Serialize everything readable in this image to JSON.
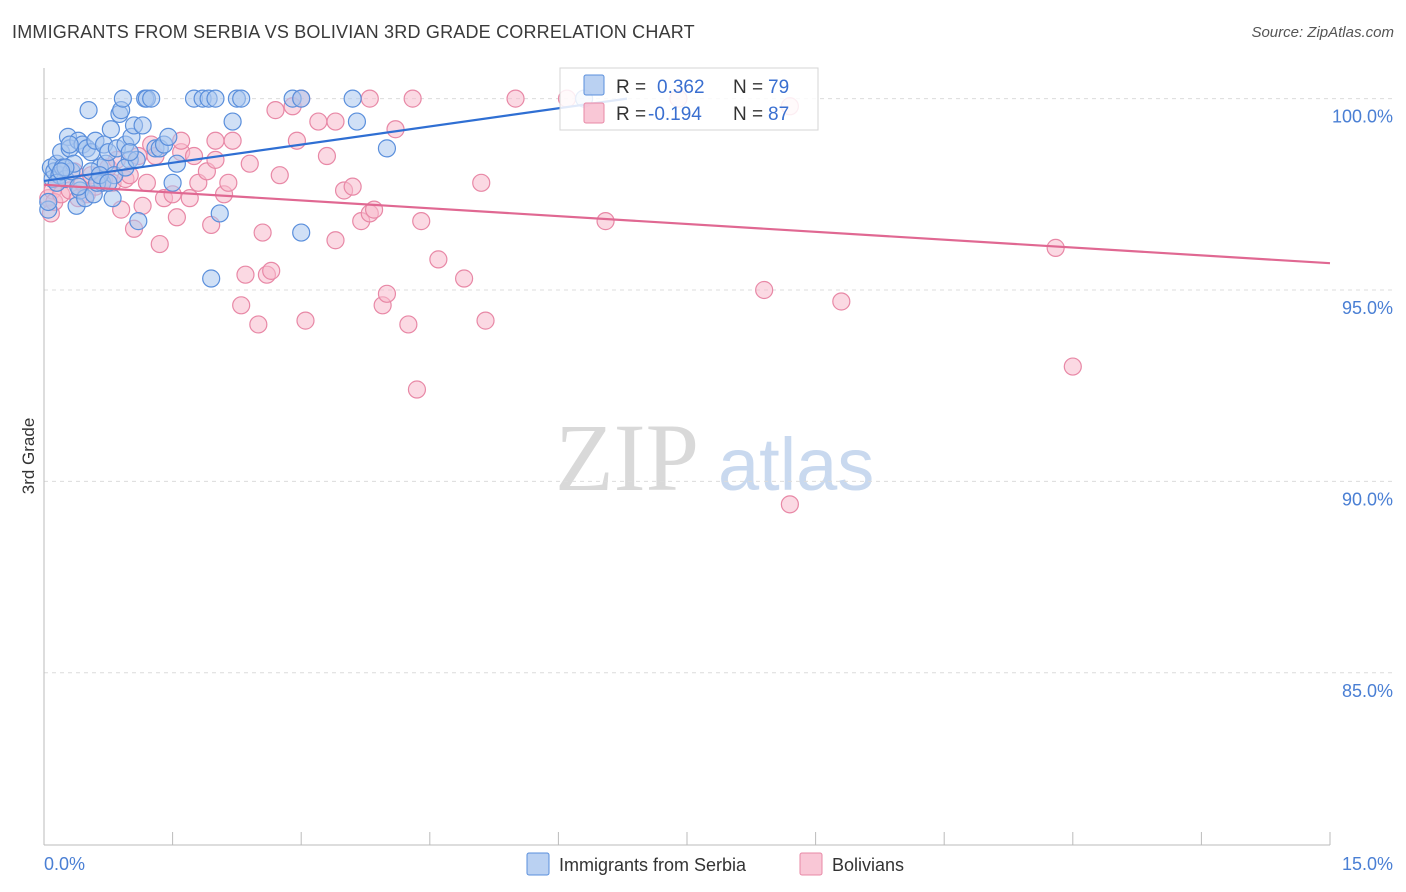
{
  "title": "IMMIGRANTS FROM SERBIA VS BOLIVIAN 3RD GRADE CORRELATION CHART",
  "source": "Source: ZipAtlas.com",
  "watermark": {
    "zip": "ZIP",
    "atlas": "atlas"
  },
  "colors": {
    "serbia_fill": "#a9c6ef",
    "serbia_stroke": "#5a8fdc",
    "serbia_line": "#2f6fd3",
    "bolivia_fill": "#f7b9cc",
    "bolivia_stroke": "#e888a6",
    "bolivia_line": "#e06892",
    "grid": "#dcdcdc",
    "tick_label": "#4a7fd4"
  },
  "legend_box": {
    "rows": [
      {
        "r_label": "R = ",
        "r_value": "0.362",
        "n_label": "N = ",
        "n_value": "79"
      },
      {
        "r_label": "R = ",
        "r_value": "-0.194",
        "n_label": "N = ",
        "n_value": "87"
      }
    ]
  },
  "chart_data": {
    "type": "scatter",
    "title": "IMMIGRANTS FROM SERBIA VS BOLIVIAN 3RD GRADE CORRELATION CHART",
    "xlabel": "",
    "ylabel": "3rd Grade",
    "xlim": [
      0,
      15
    ],
    "ylim": [
      80.5,
      100.8
    ],
    "x_tick_labels": {
      "left": "0.0%",
      "right": "15.0%"
    },
    "y_ticks": [
      {
        "value": 100,
        "label": "100.0%"
      },
      {
        "value": 95,
        "label": "95.0%"
      },
      {
        "value": 90,
        "label": "90.0%"
      },
      {
        "value": 85,
        "label": "85.0%"
      }
    ],
    "legend": [
      "Immigrants from Serbia",
      "Bolivians"
    ],
    "series": [
      {
        "name": "Immigrants from Serbia",
        "R": 0.362,
        "N": 79,
        "trend": {
          "x": [
            0,
            6.8
          ],
          "y": [
            97.85,
            100.0
          ]
        },
        "points": [
          [
            0.05,
            97.1
          ],
          [
            0.05,
            97.3
          ],
          [
            0.08,
            98.2
          ],
          [
            0.1,
            97.9
          ],
          [
            0.12,
            98.1
          ],
          [
            0.15,
            98.3
          ],
          [
            0.18,
            98.0
          ],
          [
            0.2,
            98.6
          ],
          [
            0.22,
            98.2
          ],
          [
            0.25,
            97.9
          ],
          [
            0.28,
            99.0
          ],
          [
            0.3,
            98.7
          ],
          [
            0.32,
            98.1
          ],
          [
            0.35,
            98.3
          ],
          [
            0.38,
            97.2
          ],
          [
            0.4,
            98.9
          ],
          [
            0.42,
            97.6
          ],
          [
            0.45,
            98.8
          ],
          [
            0.48,
            97.4
          ],
          [
            0.5,
            98.7
          ],
          [
            0.52,
            99.7
          ],
          [
            0.55,
            98.6
          ],
          [
            0.58,
            97.5
          ],
          [
            0.6,
            98.9
          ],
          [
            0.65,
            98.2
          ],
          [
            0.68,
            97.8
          ],
          [
            0.7,
            98.8
          ],
          [
            0.72,
            98.3
          ],
          [
            0.75,
            98.6
          ],
          [
            0.78,
            99.2
          ],
          [
            0.8,
            97.4
          ],
          [
            0.82,
            98.0
          ],
          [
            0.85,
            98.7
          ],
          [
            0.88,
            99.6
          ],
          [
            0.9,
            99.7
          ],
          [
            0.92,
            100.0
          ],
          [
            0.95,
            98.8
          ],
          [
            1.0,
            98.4
          ],
          [
            1.02,
            99.0
          ],
          [
            1.05,
            99.3
          ],
          [
            1.1,
            96.8
          ],
          [
            1.15,
            99.3
          ],
          [
            1.18,
            100.0
          ],
          [
            1.2,
            100.0
          ],
          [
            1.25,
            100.0
          ],
          [
            1.3,
            98.7
          ],
          [
            1.35,
            98.7
          ],
          [
            1.4,
            98.8
          ],
          [
            1.45,
            99.0
          ],
          [
            1.5,
            97.8
          ],
          [
            1.55,
            98.3
          ],
          [
            1.95,
            95.3
          ],
          [
            1.75,
            100.0
          ],
          [
            1.85,
            100.0
          ],
          [
            1.92,
            100.0
          ],
          [
            2.0,
            100.0
          ],
          [
            2.05,
            97.0
          ],
          [
            2.2,
            99.4
          ],
          [
            2.25,
            100.0
          ],
          [
            2.3,
            100.0
          ],
          [
            2.9,
            100.0
          ],
          [
            3.0,
            100.0
          ],
          [
            3.0,
            96.5
          ],
          [
            3.6,
            100.0
          ],
          [
            3.65,
            99.4
          ],
          [
            4.0,
            98.7
          ],
          [
            6.3,
            100.0
          ],
          [
            0.3,
            98.8
          ],
          [
            0.55,
            98.1
          ],
          [
            0.62,
            97.8
          ],
          [
            0.95,
            98.2
          ],
          [
            1.08,
            98.4
          ],
          [
            0.15,
            97.8
          ],
          [
            0.25,
            98.2
          ],
          [
            0.4,
            97.7
          ],
          [
            0.65,
            98.0
          ],
          [
            0.75,
            97.8
          ],
          [
            1.0,
            98.6
          ],
          [
            0.2,
            98.1
          ]
        ]
      },
      {
        "name": "Bolivians",
        "R": -0.194,
        "N": 87,
        "trend": {
          "x": [
            0,
            15
          ],
          "y": [
            97.75,
            95.7
          ]
        },
        "points": [
          [
            0.05,
            97.4
          ],
          [
            0.08,
            97.0
          ],
          [
            0.1,
            97.6
          ],
          [
            0.12,
            97.3
          ],
          [
            0.15,
            97.8
          ],
          [
            0.2,
            97.5
          ],
          [
            0.25,
            97.9
          ],
          [
            0.3,
            97.6
          ],
          [
            0.35,
            98.1
          ],
          [
            0.4,
            97.4
          ],
          [
            0.45,
            97.8
          ],
          [
            0.5,
            97.5
          ],
          [
            0.55,
            98.0
          ],
          [
            0.6,
            97.7
          ],
          [
            0.7,
            97.9
          ],
          [
            0.75,
            98.2
          ],
          [
            0.8,
            97.8
          ],
          [
            0.85,
            98.4
          ],
          [
            0.9,
            97.1
          ],
          [
            0.95,
            97.9
          ],
          [
            1.0,
            98.0
          ],
          [
            1.05,
            96.6
          ],
          [
            1.1,
            98.5
          ],
          [
            1.15,
            97.2
          ],
          [
            1.2,
            97.8
          ],
          [
            1.25,
            98.8
          ],
          [
            1.3,
            98.5
          ],
          [
            1.35,
            96.2
          ],
          [
            1.4,
            97.4
          ],
          [
            1.5,
            97.5
          ],
          [
            1.55,
            96.9
          ],
          [
            1.6,
            98.6
          ],
          [
            1.7,
            97.4
          ],
          [
            1.75,
            98.5
          ],
          [
            1.8,
            97.8
          ],
          [
            1.9,
            98.1
          ],
          [
            1.95,
            96.7
          ],
          [
            2.0,
            98.4
          ],
          [
            2.1,
            97.5
          ],
          [
            2.15,
            97.8
          ],
          [
            2.2,
            98.9
          ],
          [
            2.3,
            94.6
          ],
          [
            2.35,
            95.4
          ],
          [
            2.4,
            98.3
          ],
          [
            2.5,
            94.1
          ],
          [
            2.55,
            96.5
          ],
          [
            2.6,
            95.4
          ],
          [
            2.65,
            95.5
          ],
          [
            2.75,
            98.0
          ],
          [
            2.9,
            99.8
          ],
          [
            2.95,
            98.9
          ],
          [
            3.05,
            94.2
          ],
          [
            3.2,
            99.4
          ],
          [
            3.3,
            98.5
          ],
          [
            3.4,
            96.3
          ],
          [
            3.5,
            97.6
          ],
          [
            3.6,
            97.7
          ],
          [
            3.7,
            96.8
          ],
          [
            3.8,
            97.0
          ],
          [
            3.85,
            97.1
          ],
          [
            3.95,
            94.6
          ],
          [
            4.0,
            94.9
          ],
          [
            4.1,
            99.2
          ],
          [
            4.25,
            94.1
          ],
          [
            4.35,
            92.4
          ],
          [
            4.4,
            96.8
          ],
          [
            4.6,
            95.8
          ],
          [
            4.9,
            95.3
          ],
          [
            5.1,
            97.8
          ],
          [
            5.15,
            94.2
          ],
          [
            6.55,
            96.8
          ],
          [
            7.4,
            100.0
          ],
          [
            8.4,
            95.0
          ],
          [
            8.7,
            89.4
          ],
          [
            9.3,
            94.7
          ],
          [
            11.8,
            96.1
          ],
          [
            12.0,
            93.0
          ],
          [
            8.7,
            99.8
          ],
          [
            3.8,
            100.0
          ],
          [
            4.3,
            100.0
          ],
          [
            5.5,
            100.0
          ],
          [
            6.1,
            100.0
          ],
          [
            3.0,
            100.0
          ],
          [
            1.6,
            98.9
          ],
          [
            2.0,
            98.9
          ],
          [
            2.7,
            99.7
          ],
          [
            3.4,
            99.4
          ]
        ]
      }
    ]
  }
}
